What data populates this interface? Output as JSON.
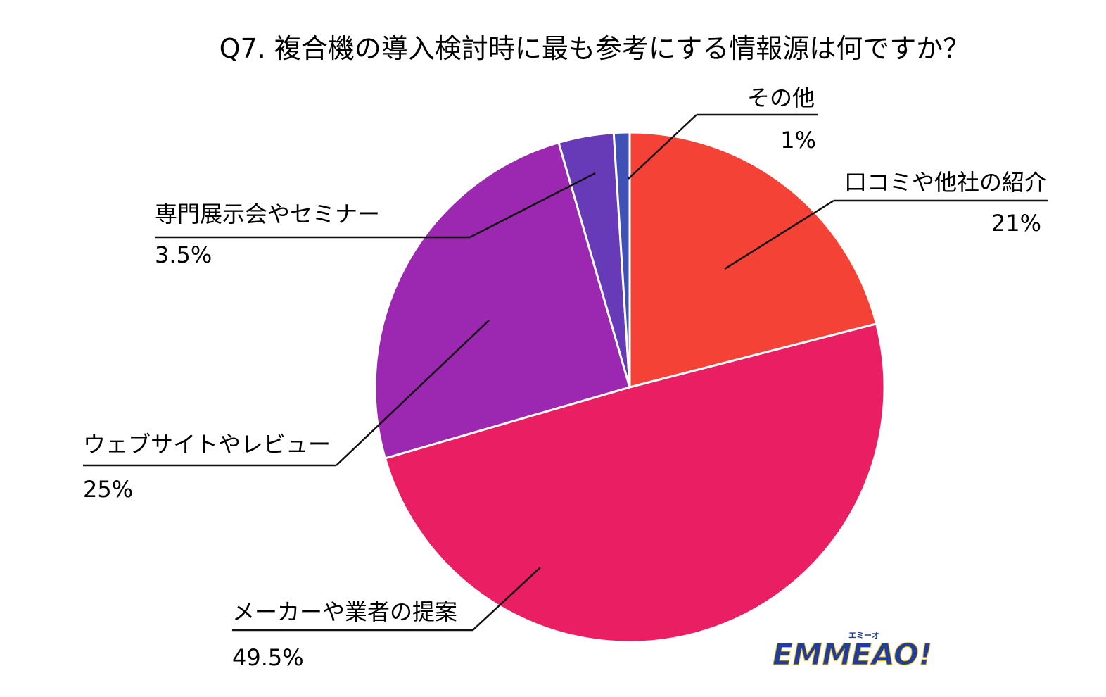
{
  "chart_data": {
    "type": "pie",
    "title": "Q7. 複合機の導入検討時に最も参考にする情報源は何ですか？",
    "slices": [
      {
        "label": "口コミや他社の紹介",
        "value": 21,
        "value_label": "21%",
        "color": "#f44336"
      },
      {
        "label": "メーカーや業者の提案",
        "value": 49.5,
        "value_label": "49.5%",
        "color": "#e91e63"
      },
      {
        "label": "ウェブサイトやレビュー",
        "value": 25,
        "value_label": "25%",
        "color": "#9c27b0"
      },
      {
        "label": "専門展示会やセミナー",
        "value": 3.5,
        "value_label": "3.5%",
        "color": "#673ab7"
      },
      {
        "label": "その他",
        "value": 1,
        "value_label": "1%",
        "color": "#3f51b5"
      }
    ],
    "start": "top",
    "direction": "clockwise"
  },
  "logo": {
    "text": "EMMEAO!",
    "sub": "エミーオ",
    "color_main": "#1f3d9e",
    "color_accent": "#f5b800"
  }
}
